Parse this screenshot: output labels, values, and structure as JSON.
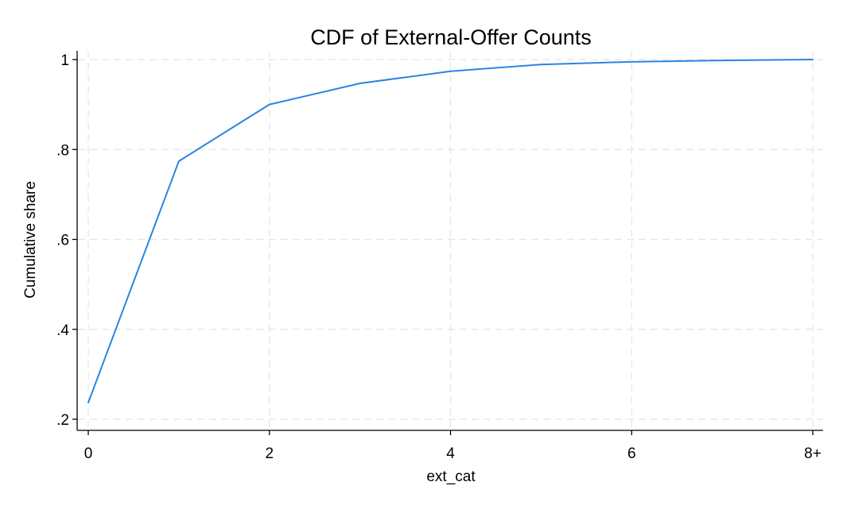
{
  "chart_data": {
    "type": "line",
    "title": "CDF of External-Offer Counts",
    "xlabel": "ext_cat",
    "ylabel": "Cumulative share",
    "x": [
      0,
      1,
      2,
      3,
      4,
      5,
      6,
      7,
      8
    ],
    "x_tick_values": [
      0,
      2,
      4,
      6,
      8
    ],
    "x_tick_labels": [
      "0",
      "2",
      "4",
      "6",
      "8+"
    ],
    "y_tick_values": [
      0.2,
      0.4,
      0.6,
      0.8,
      1.0
    ],
    "y_tick_labels": [
      ".2",
      ".4",
      ".6",
      ".8",
      "1"
    ],
    "xlim": [
      -0.05,
      8.05
    ],
    "ylim": [
      0.18,
      1.02
    ],
    "grid": true,
    "series": [
      {
        "values": [
          0.237,
          0.774,
          0.9,
          0.947,
          0.974,
          0.989,
          0.995,
          0.998,
          1.0
        ],
        "color": "#2a85e0"
      }
    ]
  }
}
